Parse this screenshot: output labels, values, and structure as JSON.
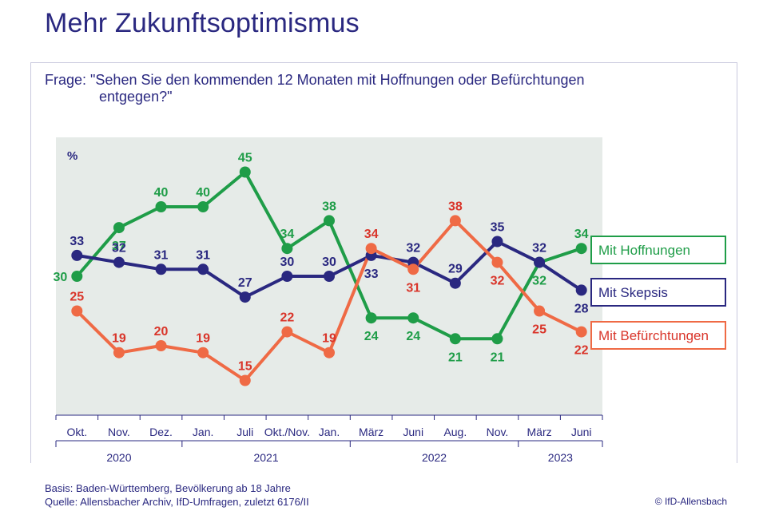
{
  "page": {
    "title": "Mehr Zukunftsoptimismus",
    "question_line1": "Frage: \"Sehen Sie den kommenden 12 Monaten mit Hoffnungen oder Befürchtungen",
    "question_line2": "entgegen?\"",
    "basis": "Basis: Baden-Württemberg, Bevölkerung ab 18 Jahre",
    "source": "Quelle: Allensbacher Archiv, IfD-Umfragen, zuletzt 6176/II",
    "credit": "© IfD-Allensbach"
  },
  "chart_data": {
    "type": "line",
    "y_unit_label": "%",
    "ylim": [
      10,
      50
    ],
    "grid": false,
    "legend_placement": "right",
    "categories": [
      "Okt.",
      "Nov.",
      "Dez.",
      "Jan.",
      "Juli",
      "Okt./Nov.",
      "Jan.",
      "März",
      "Juni",
      "Aug.",
      "Nov.",
      "März",
      "Juni"
    ],
    "years": [
      {
        "label": "2020",
        "from": 0,
        "to": 3
      },
      {
        "label": "2021",
        "from": 3,
        "to": 7
      },
      {
        "label": "2022",
        "from": 7,
        "to": 11
      },
      {
        "label": "2023",
        "from": 11,
        "to": 13
      }
    ],
    "series": [
      {
        "name": "Mit Hoffnungen",
        "color": "#1f9d48",
        "label_color": "#1f9d48",
        "values": [
          30,
          37,
          40,
          40,
          45,
          34,
          38,
          24,
          24,
          21,
          21,
          32,
          34
        ],
        "label_pos": [
          "left",
          "below",
          "above",
          "above",
          "above",
          "above",
          "above",
          "below",
          "below",
          "below",
          "below",
          "below",
          "above"
        ]
      },
      {
        "name": "Mit Skepsis",
        "color": "#2a2880",
        "label_color": "#2a2880",
        "values": [
          33,
          32,
          31,
          31,
          27,
          30,
          30,
          33,
          32,
          29,
          35,
          32,
          28
        ],
        "label_pos": [
          "above",
          "above",
          "above",
          "above",
          "above",
          "above",
          "above",
          "below",
          "above",
          "above",
          "above",
          "above",
          "below"
        ]
      },
      {
        "name": "Mit Befürchtungen",
        "color": "#ef6a45",
        "label_color": "#d9352a",
        "values": [
          25,
          19,
          20,
          19,
          15,
          22,
          19,
          34,
          31,
          38,
          32,
          25,
          22
        ],
        "label_pos": [
          "above",
          "above",
          "above",
          "above",
          "above",
          "above",
          "above",
          "above",
          "below",
          "above",
          "below",
          "below",
          "below"
        ]
      }
    ],
    "legend": [
      {
        "label": "Mit Hoffnungen",
        "color": "#1f9d48"
      },
      {
        "label": "Mit Skepsis",
        "color": "#2a2880"
      },
      {
        "label": "Mit Befürchtungen",
        "color": "#ef6a45"
      }
    ]
  }
}
